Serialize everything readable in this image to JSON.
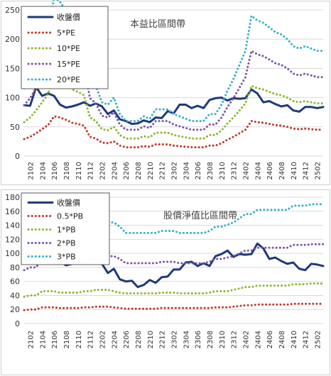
{
  "chart_data": [
    {
      "type": "line",
      "title": "本益比區間帶",
      "x": [
        "2101",
        "2102",
        "2103",
        "2104",
        "2105",
        "2106",
        "2107",
        "2108",
        "2109",
        "2110",
        "2111",
        "2112",
        "2201",
        "2202",
        "2203",
        "2204",
        "2205",
        "2206",
        "2207",
        "2208",
        "2209",
        "2210",
        "2211",
        "2212",
        "2301",
        "2302",
        "2303",
        "2304",
        "2305",
        "2306",
        "2307",
        "2308",
        "2309",
        "2310",
        "2311",
        "2312",
        "2401",
        "2402",
        "2403",
        "2404",
        "2405",
        "2406",
        "2407",
        "2408",
        "2409",
        "2410",
        "2411",
        "2412",
        "2501",
        "2502",
        "2503"
      ],
      "tick_labels": [
        "2102",
        "2104",
        "2106",
        "2108",
        "2110",
        "2112",
        "2202",
        "2204",
        "2206",
        "2208",
        "2210",
        "2212",
        "2302",
        "2304",
        "2306",
        "2308",
        "2310",
        "2312",
        "2402",
        "2404",
        "2406",
        "2408",
        "2410",
        "2412",
        "2502"
      ],
      "ylim": [
        0,
        250
      ],
      "yticks": [
        0,
        50,
        100,
        150,
        200,
        250
      ],
      "legend_position": "top-left",
      "series": [
        {
          "name": "收盤價",
          "color": "#1f3a7a",
          "style": "solid",
          "values": [
            87,
            86,
            118,
            103,
            107,
            103,
            88,
            83,
            85,
            88,
            92,
            86,
            90,
            85,
            72,
            78,
            63,
            60,
            55,
            56,
            61,
            58,
            66,
            65,
            77,
            73,
            88,
            88,
            82,
            86,
            82,
            96,
            99,
            100,
            95,
            99,
            98,
            99,
            114,
            107,
            92,
            94,
            89,
            85,
            87,
            78,
            76,
            84,
            84,
            82,
            84
          ]
        },
        {
          "name": "5*PE",
          "color": "#c0392b",
          "style": "dotted",
          "values": [
            29,
            33,
            39,
            46,
            53,
            68,
            66,
            62,
            57,
            55,
            52,
            33,
            30,
            23,
            22,
            25,
            18,
            15,
            15,
            15,
            17,
            16,
            20,
            20,
            20,
            18,
            17,
            16,
            15,
            15,
            15,
            18,
            18,
            22,
            28,
            33,
            39,
            45,
            60,
            58,
            57,
            55,
            53,
            52,
            50,
            47,
            46,
            47,
            46,
            45,
            45
          ]
        },
        {
          "name": "10*PE",
          "color": "#8ab832",
          "style": "dotted",
          "values": [
            58,
            66,
            78,
            92,
            106,
            136,
            132,
            124,
            114,
            110,
            104,
            66,
            60,
            46,
            44,
            50,
            36,
            30,
            30,
            30,
            34,
            32,
            40,
            40,
            40,
            36,
            34,
            32,
            30,
            30,
            30,
            36,
            36,
            44,
            56,
            66,
            78,
            90,
            120,
            116,
            114,
            110,
            106,
            104,
            100,
            94,
            92,
            94,
            92,
            90,
            90
          ]
        },
        {
          "name": "15*PE",
          "color": "#7a56a8",
          "style": "dotted",
          "values": [
            87,
            99,
            117,
            138,
            159,
            204,
            198,
            186,
            171,
            165,
            156,
            99,
            90,
            69,
            66,
            75,
            54,
            45,
            45,
            45,
            51,
            48,
            60,
            60,
            60,
            54,
            51,
            48,
            45,
            45,
            45,
            54,
            54,
            66,
            84,
            99,
            117,
            135,
            180,
            174,
            171,
            165,
            159,
            156,
            150,
            141,
            138,
            141,
            138,
            135,
            135
          ]
        },
        {
          "name": "20*PE",
          "color": "#3ab0c8",
          "style": "dotted",
          "values": [
            116,
            132,
            156,
            184,
            212,
            272,
            264,
            248,
            228,
            220,
            208,
            132,
            120,
            92,
            88,
            100,
            72,
            60,
            60,
            60,
            68,
            64,
            80,
            80,
            80,
            72,
            68,
            64,
            60,
            60,
            60,
            72,
            72,
            88,
            112,
            132,
            156,
            180,
            240,
            232,
            228,
            220,
            212,
            208,
            200,
            188,
            184,
            188,
            184,
            180,
            180
          ]
        }
      ]
    },
    {
      "type": "line",
      "title": "股價淨值比區間帶",
      "x": [
        "2101",
        "2102",
        "2103",
        "2104",
        "2105",
        "2106",
        "2107",
        "2108",
        "2109",
        "2110",
        "2111",
        "2112",
        "2201",
        "2202",
        "2203",
        "2204",
        "2205",
        "2206",
        "2207",
        "2208",
        "2209",
        "2210",
        "2211",
        "2212",
        "2301",
        "2302",
        "2303",
        "2304",
        "2305",
        "2306",
        "2307",
        "2308",
        "2309",
        "2310",
        "2311",
        "2312",
        "2401",
        "2402",
        "2403",
        "2404",
        "2405",
        "2406",
        "2407",
        "2408",
        "2409",
        "2410",
        "2411",
        "2412",
        "2501",
        "2502",
        "2503"
      ],
      "tick_labels": [
        "2102",
        "2104",
        "2106",
        "2108",
        "2110",
        "2112",
        "2202",
        "2204",
        "2206",
        "2208",
        "2210",
        "2212",
        "2302",
        "2304",
        "2306",
        "2308",
        "2310",
        "2312",
        "2402",
        "2404",
        "2406",
        "2408",
        "2410",
        "2412",
        "2502"
      ],
      "ylim": [
        0,
        180
      ],
      "yticks": [
        0,
        20,
        40,
        60,
        80,
        100,
        120,
        140,
        160,
        180
      ],
      "legend_position": "top-left",
      "series": [
        {
          "name": "收盤價",
          "color": "#1f3a7a",
          "style": "solid",
          "values": [
            87,
            86,
            118,
            103,
            107,
            103,
            88,
            83,
            85,
            88,
            92,
            86,
            90,
            85,
            72,
            78,
            63,
            60,
            61,
            52,
            55,
            62,
            58,
            66,
            67,
            77,
            77,
            87,
            88,
            82,
            86,
            82,
            96,
            99,
            104,
            95,
            99,
            98,
            99,
            114,
            107,
            92,
            94,
            89,
            85,
            87,
            78,
            76,
            85,
            84,
            82
          ]
        },
        {
          "name": "0.5*PB",
          "color": "#c0392b",
          "style": "dotted",
          "values": [
            19,
            20,
            20,
            23,
            23,
            23,
            22,
            22,
            22,
            22,
            23,
            23,
            24,
            24,
            24,
            23,
            22,
            21,
            21,
            21,
            21,
            21,
            21,
            22,
            22,
            22,
            22,
            22,
            22,
            22,
            22,
            22,
            23,
            23,
            23,
            24,
            25,
            26,
            26,
            27,
            27,
            27,
            27,
            27,
            27,
            28,
            28,
            28,
            28,
            28,
            28
          ]
        },
        {
          "name": "1*PB",
          "color": "#8ab832",
          "style": "dotted",
          "values": [
            38,
            40,
            40,
            46,
            46,
            46,
            44,
            44,
            44,
            44,
            46,
            46,
            48,
            48,
            48,
            46,
            44,
            43,
            43,
            43,
            43,
            43,
            43,
            44,
            44,
            44,
            43,
            43,
            43,
            43,
            43,
            44,
            46,
            46,
            46,
            48,
            50,
            52,
            52,
            54,
            54,
            54,
            54,
            54,
            54,
            56,
            56,
            56,
            57,
            57,
            57
          ]
        },
        {
          "name": "2*PB",
          "color": "#7a56a8",
          "style": "dotted",
          "values": [
            76,
            80,
            80,
            92,
            92,
            92,
            88,
            88,
            88,
            88,
            92,
            92,
            96,
            96,
            96,
            96,
            92,
            86,
            86,
            86,
            86,
            86,
            86,
            88,
            88,
            88,
            86,
            86,
            86,
            86,
            86,
            88,
            92,
            92,
            94,
            96,
            100,
            104,
            104,
            108,
            108,
            108,
            108,
            108,
            108,
            112,
            112,
            112,
            113,
            113,
            113
          ]
        },
        {
          "name": "3*PB",
          "color": "#3ab0c8",
          "style": "dotted",
          "values": [
            114,
            120,
            120,
            138,
            138,
            138,
            132,
            132,
            132,
            132,
            138,
            138,
            144,
            144,
            144,
            144,
            138,
            129,
            129,
            129,
            129,
            129,
            129,
            132,
            132,
            132,
            129,
            129,
            129,
            129,
            129,
            132,
            138,
            138,
            141,
            144,
            150,
            156,
            156,
            162,
            162,
            162,
            162,
            162,
            162,
            168,
            168,
            168,
            170,
            170,
            170
          ]
        }
      ]
    }
  ]
}
